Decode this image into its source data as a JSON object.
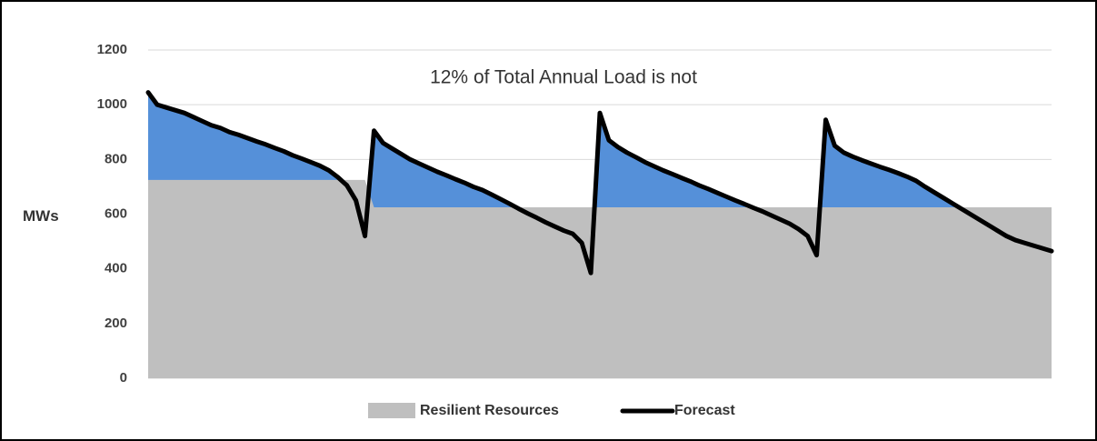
{
  "chart_data": {
    "type": "area-line",
    "annotation": "12% of Total Annual Load is not",
    "y_label": "MWs",
    "ylim": [
      0,
      1200
    ],
    "yticks": [
      0,
      200,
      400,
      600,
      800,
      1000,
      1200
    ],
    "grid": true,
    "excess_color": "#5590d9",
    "series": [
      {
        "name": "Resilient Resources",
        "color": "#bfbfbf",
        "kind": "area",
        "values": [
          725,
          725,
          725,
          725,
          725,
          725,
          725,
          725,
          725,
          725,
          725,
          725,
          725,
          725,
          725,
          725,
          725,
          725,
          725,
          725,
          725,
          725,
          725,
          725,
          725,
          625,
          625,
          625,
          625,
          625,
          625,
          625,
          625,
          625,
          625,
          625,
          625,
          625,
          625,
          625,
          625,
          625,
          625,
          625,
          625,
          625,
          625,
          625,
          625,
          625,
          625,
          625,
          625,
          625,
          625,
          625,
          625,
          625,
          625,
          625,
          625,
          625,
          625,
          625,
          625,
          625,
          625,
          625,
          625,
          625,
          625,
          625,
          625,
          625,
          625,
          625,
          625,
          625,
          625,
          625,
          625,
          625,
          625,
          625,
          625,
          625,
          625,
          625,
          625,
          625,
          625,
          625,
          625,
          625,
          625,
          625,
          625,
          625,
          625,
          625,
          625
        ]
      },
      {
        "name": "Forecast",
        "color": "#000000",
        "kind": "line",
        "values": [
          1045,
          1000,
          990,
          980,
          970,
          955,
          940,
          925,
          915,
          900,
          890,
          878,
          866,
          855,
          842,
          830,
          815,
          803,
          790,
          777,
          760,
          735,
          705,
          650,
          520,
          905,
          860,
          840,
          820,
          800,
          785,
          770,
          755,
          742,
          728,
          715,
          700,
          688,
          672,
          655,
          638,
          620,
          603,
          587,
          570,
          555,
          540,
          528,
          495,
          385,
          970,
          870,
          845,
          825,
          808,
          790,
          775,
          760,
          747,
          733,
          720,
          705,
          692,
          678,
          664,
          650,
          637,
          623,
          610,
          595,
          580,
          565,
          545,
          520,
          450,
          945,
          850,
          825,
          810,
          797,
          785,
          773,
          762,
          750,
          737,
          722,
          700,
          680,
          660,
          640,
          620,
          600,
          580,
          560,
          540,
          520,
          505,
          495,
          485,
          475,
          465
        ]
      }
    ]
  }
}
